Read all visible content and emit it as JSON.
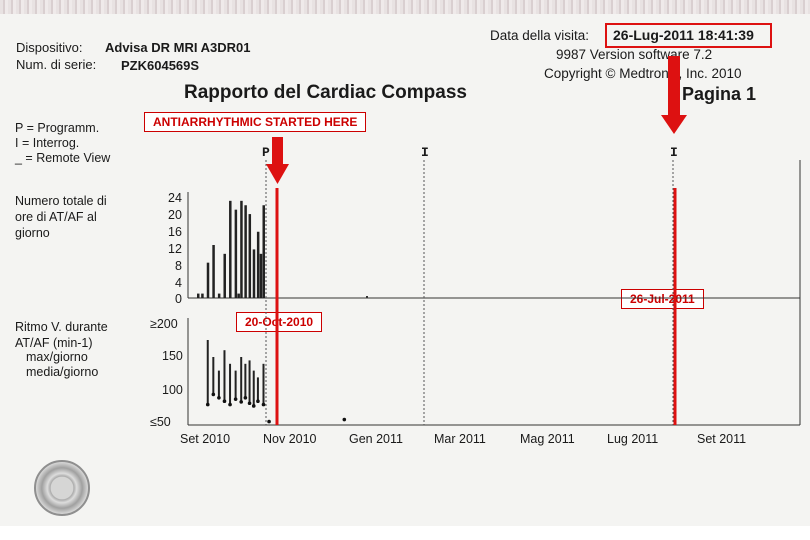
{
  "header": {
    "device_label": "Dispositivo:",
    "device_value": "Advisa DR MRI A3DR01",
    "serial_label": "Num. di serie:",
    "serial_value": "PZK604569S",
    "visit_label": "Data della visita:",
    "visit_value": "26-Lug-2011 18:41:39",
    "software_line": "9987 Version software 7.2",
    "copyright_line": "Copyright © Medtronic, Inc. 2010",
    "report_title": "Rapporto del Cardiac Compass",
    "page_label": "Pagina 1"
  },
  "legend": {
    "programm": "P = Programm.",
    "interrog": "I = Interrog.",
    "remote": "_ = Remote View"
  },
  "annotations": {
    "antiarrhythmic": "ANTIARRHYTHMIC STARTED HERE",
    "date_oct": "20-Oct-2010",
    "date_jul": "26-Jul-2011"
  },
  "markers": {
    "p": "P",
    "i1": "I",
    "i2": "I"
  },
  "colors": {
    "accent": "#dd1111",
    "ink": "#1a1a1a",
    "paper": "#f4f4f2"
  },
  "chart_data": [
    {
      "type": "bar",
      "ylabel": "Numero totale di ore di AT/AF al giorno",
      "yticks": [
        "24",
        "20",
        "16",
        "12",
        "8",
        "4",
        "0"
      ],
      "ylim": [
        0,
        24
      ],
      "grid": false,
      "series": [
        {
          "x": [
            "2010-09-01",
            "2010-09-04",
            "2010-09-08",
            "2010-09-12",
            "2010-09-16",
            "2010-09-20",
            "2010-09-24",
            "2010-09-28",
            "2010-09-30",
            "2010-10-02",
            "2010-10-05",
            "2010-10-08",
            "2010-10-11",
            "2010-10-14",
            "2010-10-16",
            "2010-10-18"
          ],
          "values": [
            1,
            1,
            8,
            12,
            1,
            10,
            22,
            20,
            1,
            22,
            21,
            19,
            11,
            15,
            10,
            21
          ]
        }
      ]
    },
    {
      "type": "line",
      "ylabel": "Ritmo V. durante AT/AF (min-1)",
      "legend": [
        "max/giorno",
        "media/giorno"
      ],
      "yticks": [
        "≥200",
        "150",
        "100",
        "≤50"
      ],
      "ylim": [
        50,
        200
      ],
      "xticks": [
        "Set 2010",
        "Nov 2010",
        "Gen 2011",
        "Mar 2011",
        "Mag 2011",
        "Lug 2011",
        "Set 2011"
      ],
      "grid": false,
      "series": [
        {
          "name": "max/giorno",
          "x": [
            "2010-09-08",
            "2010-09-12",
            "2010-09-16",
            "2010-09-20",
            "2010-09-24",
            "2010-09-28",
            "2010-10-02",
            "2010-10-05",
            "2010-10-08",
            "2010-10-11",
            "2010-10-14",
            "2010-10-18"
          ],
          "values": [
            175,
            150,
            130,
            160,
            140,
            130,
            150,
            140,
            145,
            130,
            120,
            140
          ]
        },
        {
          "name": "media/giorno",
          "x": [
            "2010-09-08",
            "2010-09-12",
            "2010-09-16",
            "2010-09-20",
            "2010-09-24",
            "2010-09-28",
            "2010-10-02",
            "2010-10-05",
            "2010-10-08",
            "2010-10-11",
            "2010-10-14",
            "2010-10-18",
            "2010-10-22",
            "2010-12-15"
          ],
          "values": [
            80,
            95,
            90,
            85,
            80,
            88,
            84,
            90,
            82,
            78,
            85,
            80,
            55,
            58
          ]
        }
      ]
    }
  ]
}
